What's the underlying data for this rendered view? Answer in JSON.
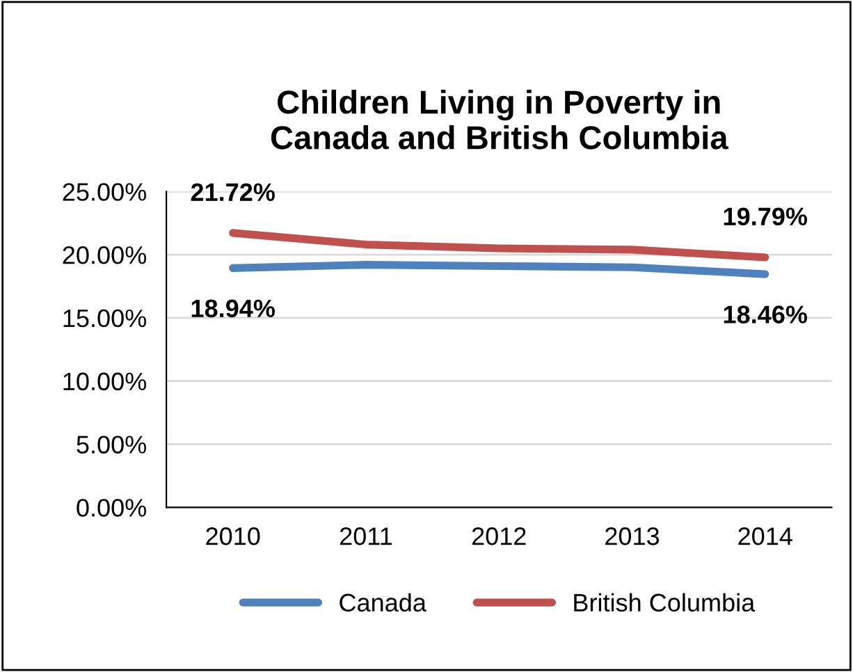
{
  "chart_data": {
    "type": "line",
    "title": "Children Living in Poverty in\nCanada and British Columbia",
    "categories": [
      "2010",
      "2011",
      "2012",
      "2013",
      "2014"
    ],
    "series": [
      {
        "name": "Canada",
        "color": "#4f81bd",
        "values": [
          18.94,
          19.2,
          19.1,
          19.0,
          18.46
        ],
        "value_labels": [
          "18.94%",
          null,
          null,
          null,
          "18.46%"
        ]
      },
      {
        "name": "British Columbia",
        "color": "#c0504d",
        "values": [
          21.72,
          20.8,
          20.5,
          20.4,
          19.79
        ],
        "value_labels": [
          "21.72%",
          null,
          null,
          null,
          "19.79%"
        ]
      }
    ],
    "ylim": [
      0,
      25
    ],
    "yticks": [
      {
        "value": 0,
        "label": "0.00%"
      },
      {
        "value": 5,
        "label": "5.00%"
      },
      {
        "value": 10,
        "label": "10.00%"
      },
      {
        "value": 15,
        "label": "15.00%"
      },
      {
        "value": 20,
        "label": "20.00%"
      },
      {
        "value": 25,
        "label": "25.00%"
      }
    ],
    "grid": "y",
    "legend": "bottom",
    "marker": "none",
    "line_style": "solid"
  }
}
